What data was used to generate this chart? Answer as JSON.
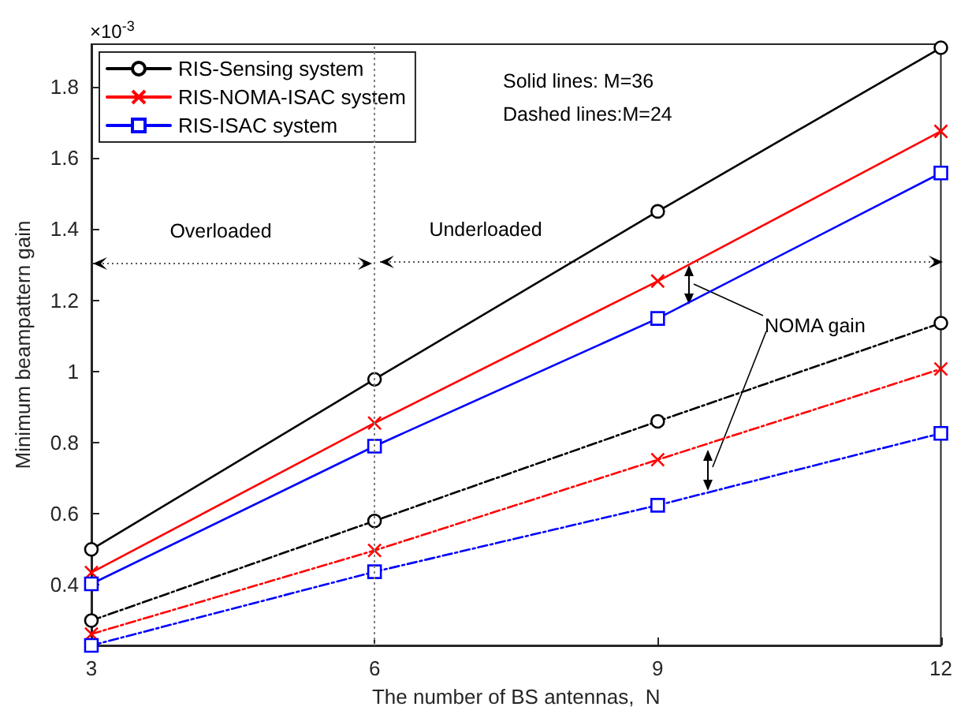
{
  "chart_data": {
    "type": "line",
    "xlabel": "The number of BS antennas,  N",
    "ylabel": "Minimum beampattern gain",
    "x": [
      3,
      6,
      9,
      12
    ],
    "xlim": [
      3,
      12
    ],
    "xticks": [
      3,
      6,
      9,
      12
    ],
    "ylim": [
      0.23,
      1.92
    ],
    "yticks": [
      0.4,
      0.6,
      0.8,
      1,
      1.2,
      1.4,
      1.6,
      1.8
    ],
    "series": [
      {
        "name": "RIS-Sensing system",
        "color": "#000000",
        "marker": "circle",
        "line_style": "solid",
        "values": [
          0.5,
          0.978,
          1.45,
          1.91
        ]
      },
      {
        "name": "RIS-NOMA-ISAC system",
        "color": "#ff0000",
        "marker": "cross",
        "line_style": "solid",
        "values": [
          0.435,
          0.855,
          1.254,
          1.675
        ]
      },
      {
        "name": "RIS-ISAC system",
        "color": "#0000ff",
        "marker": "square",
        "line_style": "solid",
        "values": [
          0.403,
          0.79,
          1.149,
          1.558
        ]
      },
      {
        "color": "#000000",
        "marker": "circle",
        "line_style": "dashed",
        "values": [
          0.3,
          0.58,
          0.86,
          1.136
        ]
      },
      {
        "color": "#ff0000",
        "marker": "cross",
        "line_style": "dashed",
        "values": [
          0.262,
          0.497,
          0.752,
          1.007
        ]
      },
      {
        "color": "#0000ff",
        "marker": "square",
        "line_style": "dashed",
        "values": [
          0.23,
          0.437,
          0.624,
          0.826
        ]
      }
    ],
    "ref_lines": [
      {
        "axis": "x",
        "value": 6,
        "color": "#808080",
        "line_style": "dotted"
      }
    ],
    "annotations": [
      "×10$^{-3}$",
      "Solid lines: M=36",
      "Dashed lines:M=24",
      "Overloaded",
      "Underloaded",
      "NOMA gain"
    ],
    "legend": "top left",
    "grid": false
  }
}
